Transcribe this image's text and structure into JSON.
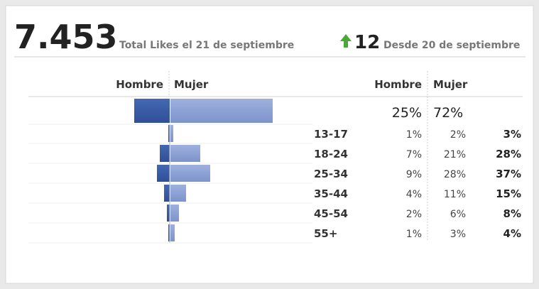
{
  "header": {
    "total": "7.453",
    "total_caption": "Total Likes el 21 de septiembre",
    "change": "12",
    "change_caption": "Desde 20 de septiembre"
  },
  "pyramid": {
    "left_heading": "Hombre",
    "right_heading": "Mujer",
    "columns": [
      "Hombre",
      "Mujer"
    ],
    "totals": {
      "values": [
        25,
        72
      ],
      "value_labels": [
        "25%",
        "72%"
      ]
    },
    "rows": [
      {
        "age": "13-17",
        "values": [
          1,
          2,
          3
        ],
        "value_labels": [
          "1%",
          "2%",
          "3%"
        ]
      },
      {
        "age": "18-24",
        "values": [
          7,
          21,
          28
        ],
        "value_labels": [
          "7%",
          "21%",
          "28%"
        ]
      },
      {
        "age": "25-34",
        "values": [
          9,
          28,
          37
        ],
        "value_labels": [
          "9%",
          "28%",
          "37%"
        ]
      },
      {
        "age": "35-44",
        "values": [
          4,
          11,
          15
        ],
        "value_labels": [
          "4%",
          "11%",
          "15%"
        ]
      },
      {
        "age": "45-54",
        "values": [
          2,
          6,
          8
        ],
        "value_labels": [
          "2%",
          "6%",
          "8%"
        ]
      },
      {
        "age": "55+",
        "values": [
          1,
          3,
          4
        ],
        "value_labels": [
          "1%",
          "3%",
          "4%"
        ]
      }
    ]
  }
}
